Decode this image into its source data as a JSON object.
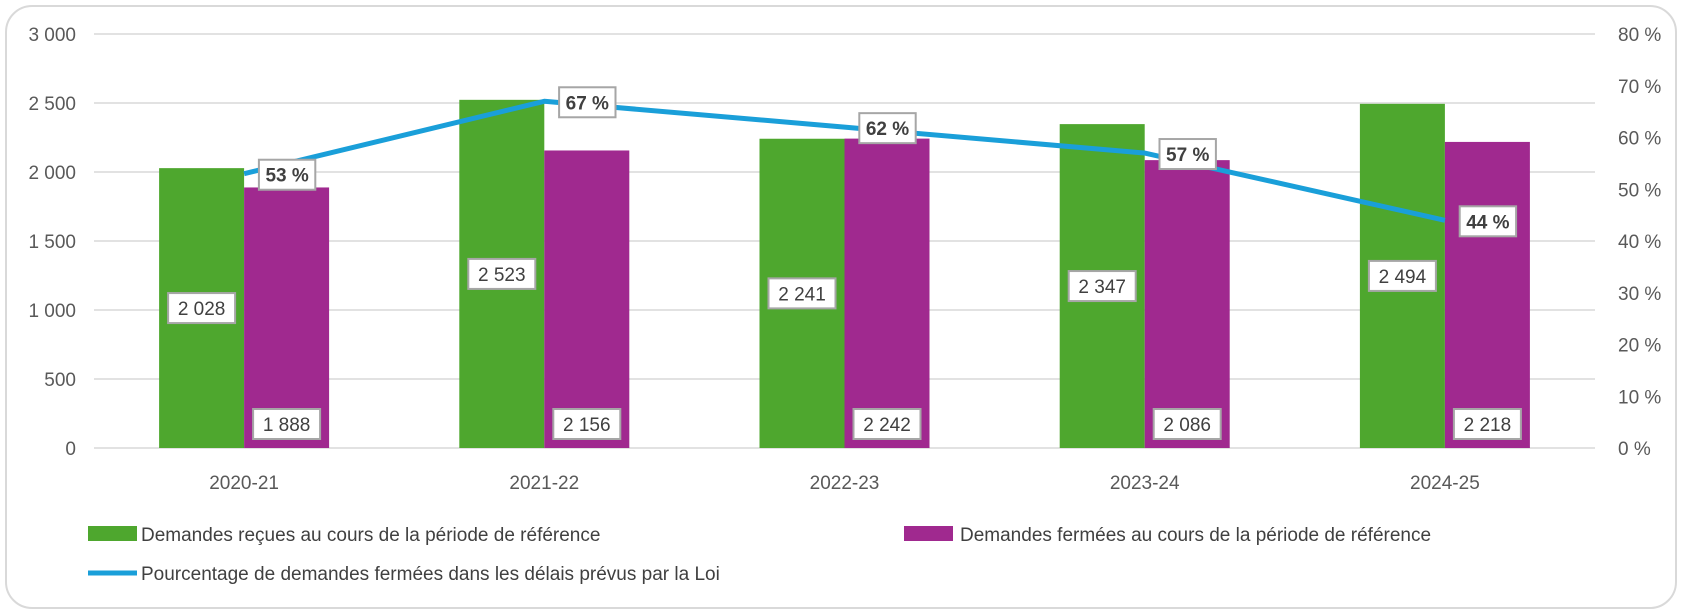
{
  "chart_data": {
    "type": "bar",
    "categories": [
      "2020-21",
      "2021-22",
      "2022-23",
      "2023-24",
      "2024-25"
    ],
    "series": [
      {
        "name": "Demandes reçues au cours de la période de référence",
        "type": "bar",
        "axis": "left",
        "color": "#4ea72e",
        "values": [
          2028,
          2523,
          2241,
          2347,
          2494
        ],
        "labels": [
          "2 028",
          "2 523",
          "2 241",
          "2 347",
          "2 494"
        ]
      },
      {
        "name": "Demandes fermées au cours de la période de référence",
        "type": "bar",
        "axis": "left",
        "color": "#a0298f",
        "values": [
          1888,
          2156,
          2242,
          2086,
          2218
        ],
        "labels": [
          "1 888",
          "2 156",
          "2 242",
          "2 086",
          "2 218"
        ]
      },
      {
        "name": "Pourcentage de demandes fermées dans les délais prévus par la Loi",
        "type": "line",
        "axis": "right",
        "color": "#1a9fd9",
        "values": [
          53,
          67,
          62,
          57,
          44
        ],
        "labels": [
          "53 %",
          "67 %",
          "62 %",
          "57 %",
          "44 %"
        ]
      }
    ],
    "y_left": {
      "range": [
        0,
        3000
      ],
      "ticks": [
        0,
        500,
        1000,
        1500,
        2000,
        2500,
        3000
      ],
      "tick_labels": [
        "0",
        "500",
        "1 000",
        "1 500",
        "2 000",
        "2 500",
        "3 000"
      ]
    },
    "y_right": {
      "range": [
        0,
        80
      ],
      "ticks": [
        0,
        10,
        20,
        30,
        40,
        50,
        60,
        70,
        80
      ],
      "tick_labels": [
        "0 %",
        "10 %",
        "20 %",
        "30 %",
        "40 %",
        "50 %",
        "60 %",
        "70 %",
        "80 %"
      ]
    },
    "grid": true,
    "legend_position": "bottom"
  }
}
